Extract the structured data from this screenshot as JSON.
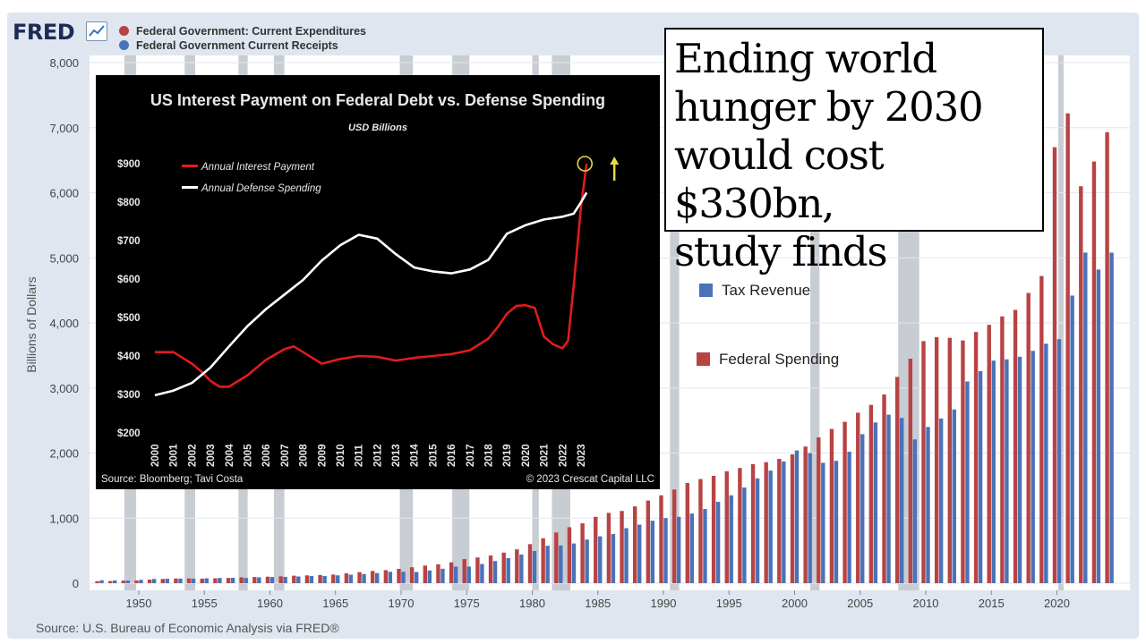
{
  "logo": {
    "text": "FRED"
  },
  "legend": [
    {
      "label": "Federal Government: Current Expenditures",
      "color": "#b84344"
    },
    {
      "label": "Federal Government Current Receipts",
      "color": "#4a72b8"
    }
  ],
  "source": "Source: U.S. Bureau of Economic Analysis via FRED®",
  "annotations": {
    "tax_revenue": "Tax Revenue",
    "federal_spending": "Federal Spending"
  },
  "headline": {
    "lines": [
      "Ending world",
      "hunger by 2030",
      "would cost $330bn,",
      "study finds"
    ]
  },
  "colors": {
    "expenditures": "#b84344",
    "receipts": "#4a72b8",
    "background_band": "#dfe6ef",
    "recession": "#c8ccd3",
    "interest": "#e21b1b",
    "defense": "#ffffff",
    "highlight_circle": "#e8d84a"
  },
  "chart_data": [
    {
      "type": "bar",
      "title": "",
      "xlabel": "",
      "ylabel": "Billions of Dollars",
      "ylim": [
        0,
        8000
      ],
      "yticks": [
        "0",
        "1,000",
        "2,000",
        "3,000",
        "4,000",
        "5,000",
        "6,000",
        "7,000",
        "8,000"
      ],
      "xticks": [
        "1950",
        "1955",
        "1960",
        "1965",
        "1970",
        "1975",
        "1980",
        "1985",
        "1990",
        "1995",
        "2000",
        "2005",
        "2010",
        "2015",
        "2020"
      ],
      "x": [
        1947,
        1948,
        1949,
        1950,
        1951,
        1952,
        1953,
        1954,
        1955,
        1956,
        1957,
        1958,
        1959,
        1960,
        1961,
        1962,
        1963,
        1964,
        1965,
        1966,
        1967,
        1968,
        1969,
        1970,
        1971,
        1972,
        1973,
        1974,
        1975,
        1976,
        1977,
        1978,
        1979,
        1980,
        1981,
        1982,
        1983,
        1984,
        1985,
        1986,
        1987,
        1988,
        1989,
        1990,
        1991,
        1992,
        1993,
        1994,
        1995,
        1996,
        1997,
        1998,
        1999,
        2000,
        2001,
        2002,
        2003,
        2004,
        2005,
        2006,
        2007,
        2008,
        2009,
        2010,
        2011,
        2012,
        2013,
        2014,
        2015,
        2016,
        2017,
        2018,
        2019,
        2020,
        2021,
        2022,
        2023,
        2024
      ],
      "series": [
        {
          "name": "Federal Government: Current Expenditures",
          "values": [
            30,
            33,
            40,
            42,
            55,
            65,
            72,
            72,
            70,
            75,
            80,
            90,
            95,
            100,
            105,
            115,
            120,
            125,
            132,
            152,
            170,
            188,
            200,
            220,
            245,
            270,
            290,
            320,
            370,
            395,
            425,
            470,
            520,
            600,
            690,
            780,
            860,
            920,
            1020,
            1080,
            1110,
            1180,
            1270,
            1350,
            1440,
            1540,
            1600,
            1650,
            1720,
            1770,
            1830,
            1860,
            1910,
            1980,
            2100,
            2240,
            2370,
            2480,
            2620,
            2740,
            2900,
            3170,
            3450,
            3720,
            3780,
            3770,
            3730,
            3860,
            3970,
            4100,
            4200,
            4460,
            4720,
            6700,
            7220,
            6100,
            6480,
            6930
          ]
        },
        {
          "name": "Federal Government Current Receipts",
          "values": [
            45,
            43,
            40,
            52,
            65,
            68,
            70,
            68,
            75,
            80,
            83,
            80,
            90,
            95,
            97,
            103,
            110,
            110,
            120,
            130,
            140,
            155,
            175,
            175,
            172,
            195,
            222,
            255,
            255,
            295,
            340,
            385,
            440,
            495,
            575,
            580,
            610,
            670,
            720,
            755,
            845,
            900,
            960,
            1000,
            1020,
            1070,
            1140,
            1250,
            1350,
            1470,
            1610,
            1730,
            1870,
            2040,
            2000,
            1850,
            1880,
            2020,
            2290,
            2470,
            2590,
            2540,
            2210,
            2400,
            2530,
            2670,
            3100,
            3260,
            3420,
            3440,
            3480,
            3570,
            3680,
            3750,
            4420,
            5080,
            4820,
            5080
          ]
        }
      ],
      "recessions": [
        [
          1948.9,
          1949.8
        ],
        [
          1953.5,
          1954.3
        ],
        [
          1957.6,
          1958.3
        ],
        [
          1960.3,
          1961.1
        ],
        [
          1969.9,
          1970.9
        ],
        [
          1973.9,
          1975.2
        ],
        [
          1980.0,
          1980.5
        ],
        [
          1981.5,
          1982.9
        ],
        [
          1990.5,
          1991.2
        ],
        [
          2001.2,
          2001.9
        ],
        [
          2007.9,
          2009.5
        ],
        [
          2020.1,
          2020.4
        ]
      ]
    },
    {
      "type": "line",
      "title": "US Interest Payment on Federal Debt vs. Defense Spending",
      "subtitle": "USD Billions",
      "xlabel": "",
      "ylabel": "",
      "ylim": [
        200,
        900
      ],
      "xlim": [
        2000,
        2023
      ],
      "yticks": [
        "$200",
        "$300",
        "$400",
        "$500",
        "$600",
        "$700",
        "$800",
        "$900"
      ],
      "xticks": [
        "2000",
        "2001",
        "2002",
        "2003",
        "2004",
        "2005",
        "2006",
        "2007",
        "2008",
        "2009",
        "2010",
        "2011",
        "2012",
        "2013",
        "2014",
        "2015",
        "2016",
        "2017",
        "2018",
        "2019",
        "2020",
        "2021",
        "2022",
        "2023"
      ],
      "series": [
        {
          "name": "Annual Interest Payment",
          "x": [
            2000,
            2001,
            2002,
            2002.5,
            2003,
            2003.5,
            2004,
            2005,
            2006,
            2007,
            2007.5,
            2008,
            2009,
            2010,
            2011,
            2012,
            2013,
            2014,
            2015,
            2016,
            2017,
            2018,
            2018.5,
            2019,
            2019.5,
            2020,
            2020.5,
            2021,
            2021.5,
            2022,
            2022.3,
            2022.6,
            2023,
            2023.3
          ],
          "values": [
            410,
            410,
            380,
            360,
            335,
            320,
            320,
            350,
            390,
            418,
            425,
            410,
            380,
            392,
            400,
            398,
            388,
            395,
            400,
            405,
            415,
            445,
            475,
            510,
            530,
            532,
            525,
            450,
            430,
            420,
            440,
            580,
            790,
            900
          ]
        },
        {
          "name": "Annual Defense Spending",
          "x": [
            2000,
            2001,
            2002,
            2003,
            2004,
            2005,
            2006,
            2007,
            2008,
            2009,
            2010,
            2011,
            2012,
            2013,
            2014,
            2015,
            2016,
            2017,
            2018,
            2019,
            2020,
            2021,
            2022,
            2022.6,
            2023,
            2023.3
          ],
          "values": [
            298,
            310,
            330,
            370,
            425,
            478,
            522,
            560,
            598,
            648,
            688,
            715,
            705,
            665,
            630,
            620,
            615,
            625,
            650,
            718,
            740,
            755,
            762,
            770,
            800,
            825
          ]
        }
      ],
      "legend": [
        "Annual Interest Payment",
        "Annual Defense Spending"
      ],
      "source": "Source: Bloomberg; Tavi Costa",
      "copyright": "© 2023 Crescat Capital LLC"
    }
  ]
}
